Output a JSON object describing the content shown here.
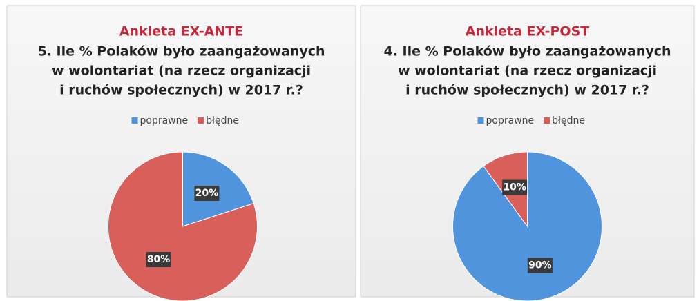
{
  "chart_data": [
    {
      "type": "pie",
      "title": "Ankieta EX-ANTE",
      "subtitle": [
        "5. Ile % Polaków było zaangażowanych",
        "w wolontariat (na rzecz organizacji",
        "i ruchów społecznych) w 2017 r.?"
      ],
      "categories": [
        "poprawne",
        "błędne"
      ],
      "values": [
        20,
        80
      ],
      "value_labels": [
        "20%",
        "80%"
      ],
      "colors": [
        "#4f94dd",
        "#d9605a"
      ],
      "legend": "top"
    },
    {
      "type": "pie",
      "title": "Ankieta EX-POST",
      "subtitle": [
        "4. Ile % Polaków było zaangażowanych",
        "w wolontariat (na rzecz organizacji",
        "i ruchów społecznych) w 2017 r.?"
      ],
      "categories": [
        "poprawne",
        "błędne"
      ],
      "values": [
        90,
        10
      ],
      "value_labels": [
        "90%",
        "10%"
      ],
      "colors": [
        "#4f94dd",
        "#d9605a"
      ],
      "legend": "top"
    }
  ]
}
